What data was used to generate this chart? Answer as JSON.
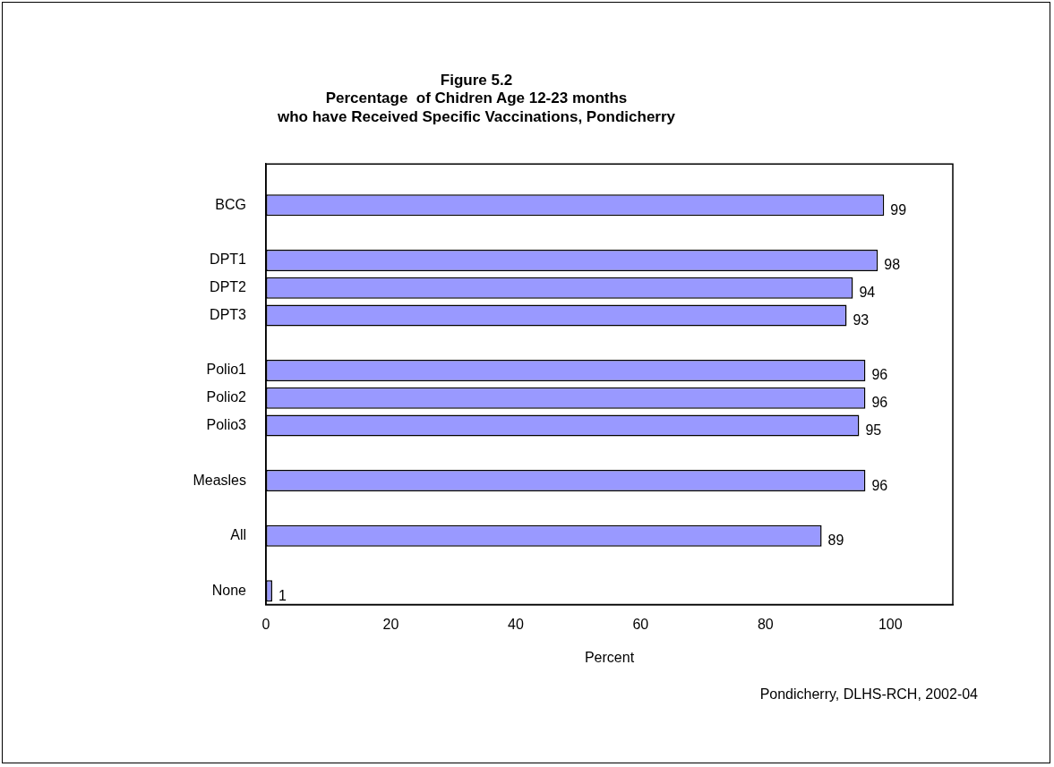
{
  "chart_data": {
    "type": "bar",
    "orientation": "horizontal",
    "title": "Figure 5.2\nPercentage  of Chidren Age 12-23 months\nwho have Received Specific Vaccinations, Pondicherry",
    "xlabel": "Percent",
    "categories": [
      null,
      "BCG",
      null,
      "DPT1",
      "DPT2",
      "DPT3",
      null,
      "Polio1",
      "Polio2",
      "Polio3",
      null,
      "Measles",
      null,
      "All",
      null,
      "None"
    ],
    "values": [
      null,
      99,
      null,
      98,
      94,
      93,
      null,
      96,
      96,
      95,
      null,
      96,
      null,
      89,
      null,
      1
    ],
    "color": "#9999ff",
    "xlim": [
      0,
      110
    ],
    "xticks": [
      0,
      20,
      40,
      60,
      80,
      100
    ],
    "data_labels": true,
    "annotations": [
      "Pondicherry, DLHS-RCH, 2002-04"
    ]
  }
}
